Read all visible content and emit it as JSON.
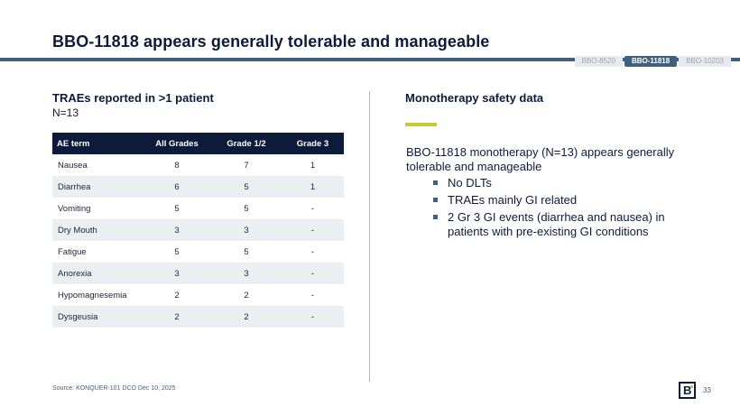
{
  "title": "BBO-11818 appears generally tolerable and manageable",
  "tabs": [
    {
      "label": "BBO-8520",
      "active": false
    },
    {
      "label": "BBO-11818",
      "active": true
    },
    {
      "label": "BBO-10203",
      "active": false
    }
  ],
  "left": {
    "heading": "TRAEs reported in >1 patient",
    "subheading": "N=13",
    "table": {
      "headers": [
        "AE term",
        "All Grades",
        "Grade 1/2",
        "Grade 3"
      ],
      "rows": [
        [
          "Nausea",
          "8",
          "7",
          "1"
        ],
        [
          "Diarrhea",
          "6",
          "5",
          "1"
        ],
        [
          "Vomiting",
          "5",
          "5",
          "-"
        ],
        [
          "Dry Mouth",
          "3",
          "3",
          "-"
        ],
        [
          "Fatigue",
          "5",
          "5",
          "-"
        ],
        [
          "Anorexia",
          "3",
          "3",
          "-"
        ],
        [
          "Hypomagnesemia",
          "2",
          "2",
          "-"
        ],
        [
          "Dysgeusia",
          "2",
          "2",
          "-"
        ]
      ]
    }
  },
  "right": {
    "heading": "Monotherapy safety data",
    "body": "BBO-11818 monotherapy (N=13) appears generally tolerable and manageable",
    "bullets": [
      "No DLTs",
      "TRAEs mainly GI related",
      "2 Gr 3 GI events (diarrhea and nausea) in patients with pre-existing GI conditions"
    ]
  },
  "source": "Source: KONQUER-101 DCO Dec 10, 2025",
  "logo_text": "B",
  "page_number": "33",
  "colors": {
    "navy": "#0d1b3a",
    "steel_blue": "#41607f",
    "accent_lime": "#c6cc30",
    "row_stripe": "#ebeef2"
  }
}
